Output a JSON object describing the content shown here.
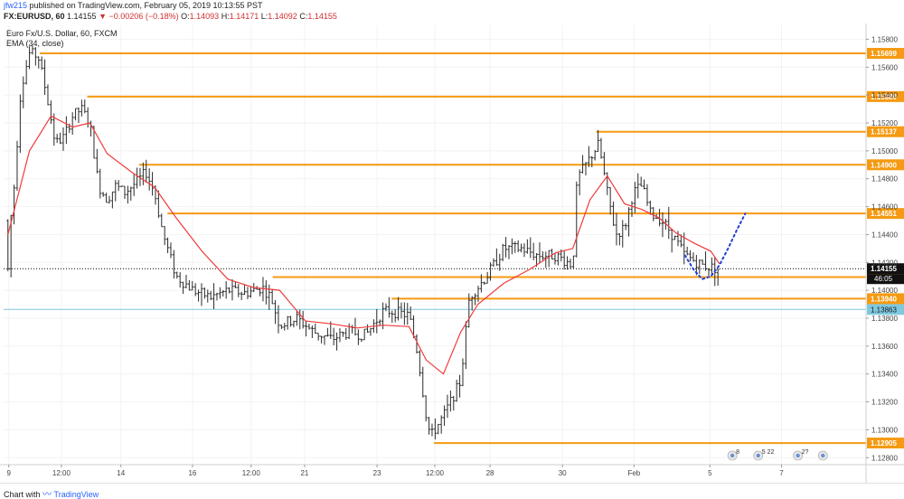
{
  "header": {
    "user": "jfw215",
    "published": "published on TradingView.com, February 05, 2019 10:13:55 PST",
    "symbol": "FX:EURUSD, 60",
    "last": "1.14155",
    "change_icon": "triangle-down-icon",
    "change": "−0.00206 (−0.18%)",
    "o_label": "O:",
    "o": "1.14093",
    "h_label": "H:",
    "h": "1.14171",
    "l_label": "L:",
    "l": "1.14092",
    "c_label": "C:",
    "c": "1.14155"
  },
  "legend": {
    "title": "Euro Fx/U.S. Dollar, 60, FXCM",
    "ema": "EMA (34, close)"
  },
  "footer": {
    "made_with": "Chart with",
    "brand": "TradingView"
  },
  "colors": {
    "up_down_bars": "#2a2a2a",
    "ema": "#ef3b3b",
    "level": "#f59a12",
    "current_price": "#000000",
    "low_marker": "#7fc8e0",
    "projection": "#1f3fd6",
    "background": "#ffffff"
  },
  "chart_data": {
    "type": "ohlc",
    "title": "Euro Fx/U.S. Dollar, 60, FXCM",
    "y_axis": {
      "range": [
        1.1275,
        1.159
      ],
      "ticks": [
        "1.15800",
        "1.15600",
        "1.15400",
        "1.15200",
        "1.15000",
        "1.14800",
        "1.14600",
        "1.14400",
        "1.14200",
        "1.14000",
        "1.13800",
        "1.13600",
        "1.13400",
        "1.13200",
        "1.13000",
        "1.12800"
      ],
      "tick_values": [
        1.158,
        1.156,
        1.154,
        1.152,
        1.15,
        1.148,
        1.146,
        1.144,
        1.142,
        1.14,
        1.138,
        1.136,
        1.134,
        1.132,
        1.13,
        1.128
      ]
    },
    "x_axis": {
      "labels": [
        "9",
        "12:00",
        "14",
        "16",
        "12:00",
        "21",
        "23",
        "12:00",
        "28",
        "30",
        "Feb",
        "5",
        "7"
      ],
      "label_pos": [
        0.006,
        0.067,
        0.136,
        0.219,
        0.287,
        0.349,
        0.433,
        0.5,
        0.564,
        0.648,
        0.731,
        0.819,
        0.902
      ]
    },
    "price_levels": [
      {
        "label": "1.15699",
        "value": 1.15699,
        "x_start": 0.042
      },
      {
        "label": "1.15389",
        "value": 1.15389,
        "x_start": 0.097
      },
      {
        "label": "1.15137",
        "value": 1.15137,
        "x_start": 0.687
      },
      {
        "label": "1.14900",
        "value": 1.149,
        "x_start": 0.157
      },
      {
        "label": "1.14551",
        "value": 1.14551,
        "x_start": 0.19
      },
      {
        "label": "1.14095",
        "value": 1.14095,
        "x_start": 0.312
      },
      {
        "label": "1.13940",
        "value": 1.1394,
        "x_start": 0.45
      },
      {
        "label": "1.12905",
        "value": 1.12905,
        "x_start": 0.499
      }
    ],
    "current_price": {
      "label": "1.14155",
      "value": 1.14155,
      "countdown": "46:05"
    },
    "low_marker": {
      "label": "1.13863",
      "value": 1.13863
    },
    "ema_34": {
      "x": [
        0.005,
        0.03,
        0.055,
        0.08,
        0.1,
        0.12,
        0.15,
        0.175,
        0.2,
        0.23,
        0.26,
        0.29,
        0.32,
        0.35,
        0.38,
        0.41,
        0.44,
        0.47,
        0.49,
        0.51,
        0.53,
        0.55,
        0.58,
        0.61,
        0.64,
        0.66,
        0.68,
        0.7,
        0.72,
        0.74,
        0.76,
        0.78,
        0.8,
        0.82,
        0.83
      ],
      "y": [
        1.144,
        1.15,
        1.1525,
        1.1517,
        1.152,
        1.1498,
        1.1484,
        1.1474,
        1.1452,
        1.1428,
        1.1408,
        1.1402,
        1.14,
        1.1378,
        1.1376,
        1.1373,
        1.1375,
        1.1374,
        1.135,
        1.134,
        1.137,
        1.139,
        1.1405,
        1.1415,
        1.1427,
        1.143,
        1.1465,
        1.1482,
        1.1462,
        1.1458,
        1.1452,
        1.1441,
        1.1434,
        1.1428,
        1.1419
      ]
    },
    "projection": {
      "x": [
        0.79,
        0.8,
        0.81,
        0.82,
        0.83,
        0.84,
        0.85,
        0.86
      ],
      "y": [
        1.1425,
        1.1415,
        1.1408,
        1.141,
        1.1418,
        1.143,
        1.1443,
        1.1455
      ]
    },
    "ohlc_path": {
      "x": [
        0.005,
        0.01,
        0.02,
        0.03,
        0.04,
        0.05,
        0.06,
        0.07,
        0.08,
        0.09,
        0.1,
        0.11,
        0.12,
        0.13,
        0.14,
        0.155,
        0.165,
        0.175,
        0.185,
        0.19,
        0.2,
        0.21,
        0.22,
        0.24,
        0.26,
        0.28,
        0.3,
        0.31,
        0.32,
        0.34,
        0.36,
        0.38,
        0.4,
        0.42,
        0.44,
        0.45,
        0.47,
        0.48,
        0.49,
        0.495,
        0.51,
        0.53,
        0.54,
        0.56,
        0.58,
        0.6,
        0.62,
        0.64,
        0.66,
        0.665,
        0.68,
        0.69,
        0.7,
        0.71,
        0.72,
        0.73,
        0.74,
        0.75,
        0.76,
        0.77,
        0.79,
        0.81,
        0.83
      ],
      "y": [
        1.145,
        1.1455,
        1.1545,
        1.157,
        1.1568,
        1.154,
        1.1505,
        1.151,
        1.1525,
        1.153,
        1.152,
        1.1475,
        1.1465,
        1.1475,
        1.147,
        1.1478,
        1.1485,
        1.147,
        1.144,
        1.143,
        1.141,
        1.1405,
        1.14,
        1.1395,
        1.14,
        1.1398,
        1.1402,
        1.1395,
        1.1375,
        1.138,
        1.137,
        1.1365,
        1.137,
        1.1368,
        1.1385,
        1.1385,
        1.1382,
        1.1355,
        1.131,
        1.1295,
        1.131,
        1.1335,
        1.1395,
        1.141,
        1.143,
        1.143,
        1.1425,
        1.1425,
        1.1418,
        1.148,
        1.1495,
        1.1505,
        1.147,
        1.144,
        1.1445,
        1.147,
        1.1475,
        1.1455,
        1.1452,
        1.1445,
        1.1425,
        1.1418,
        1.1415
      ]
    }
  }
}
